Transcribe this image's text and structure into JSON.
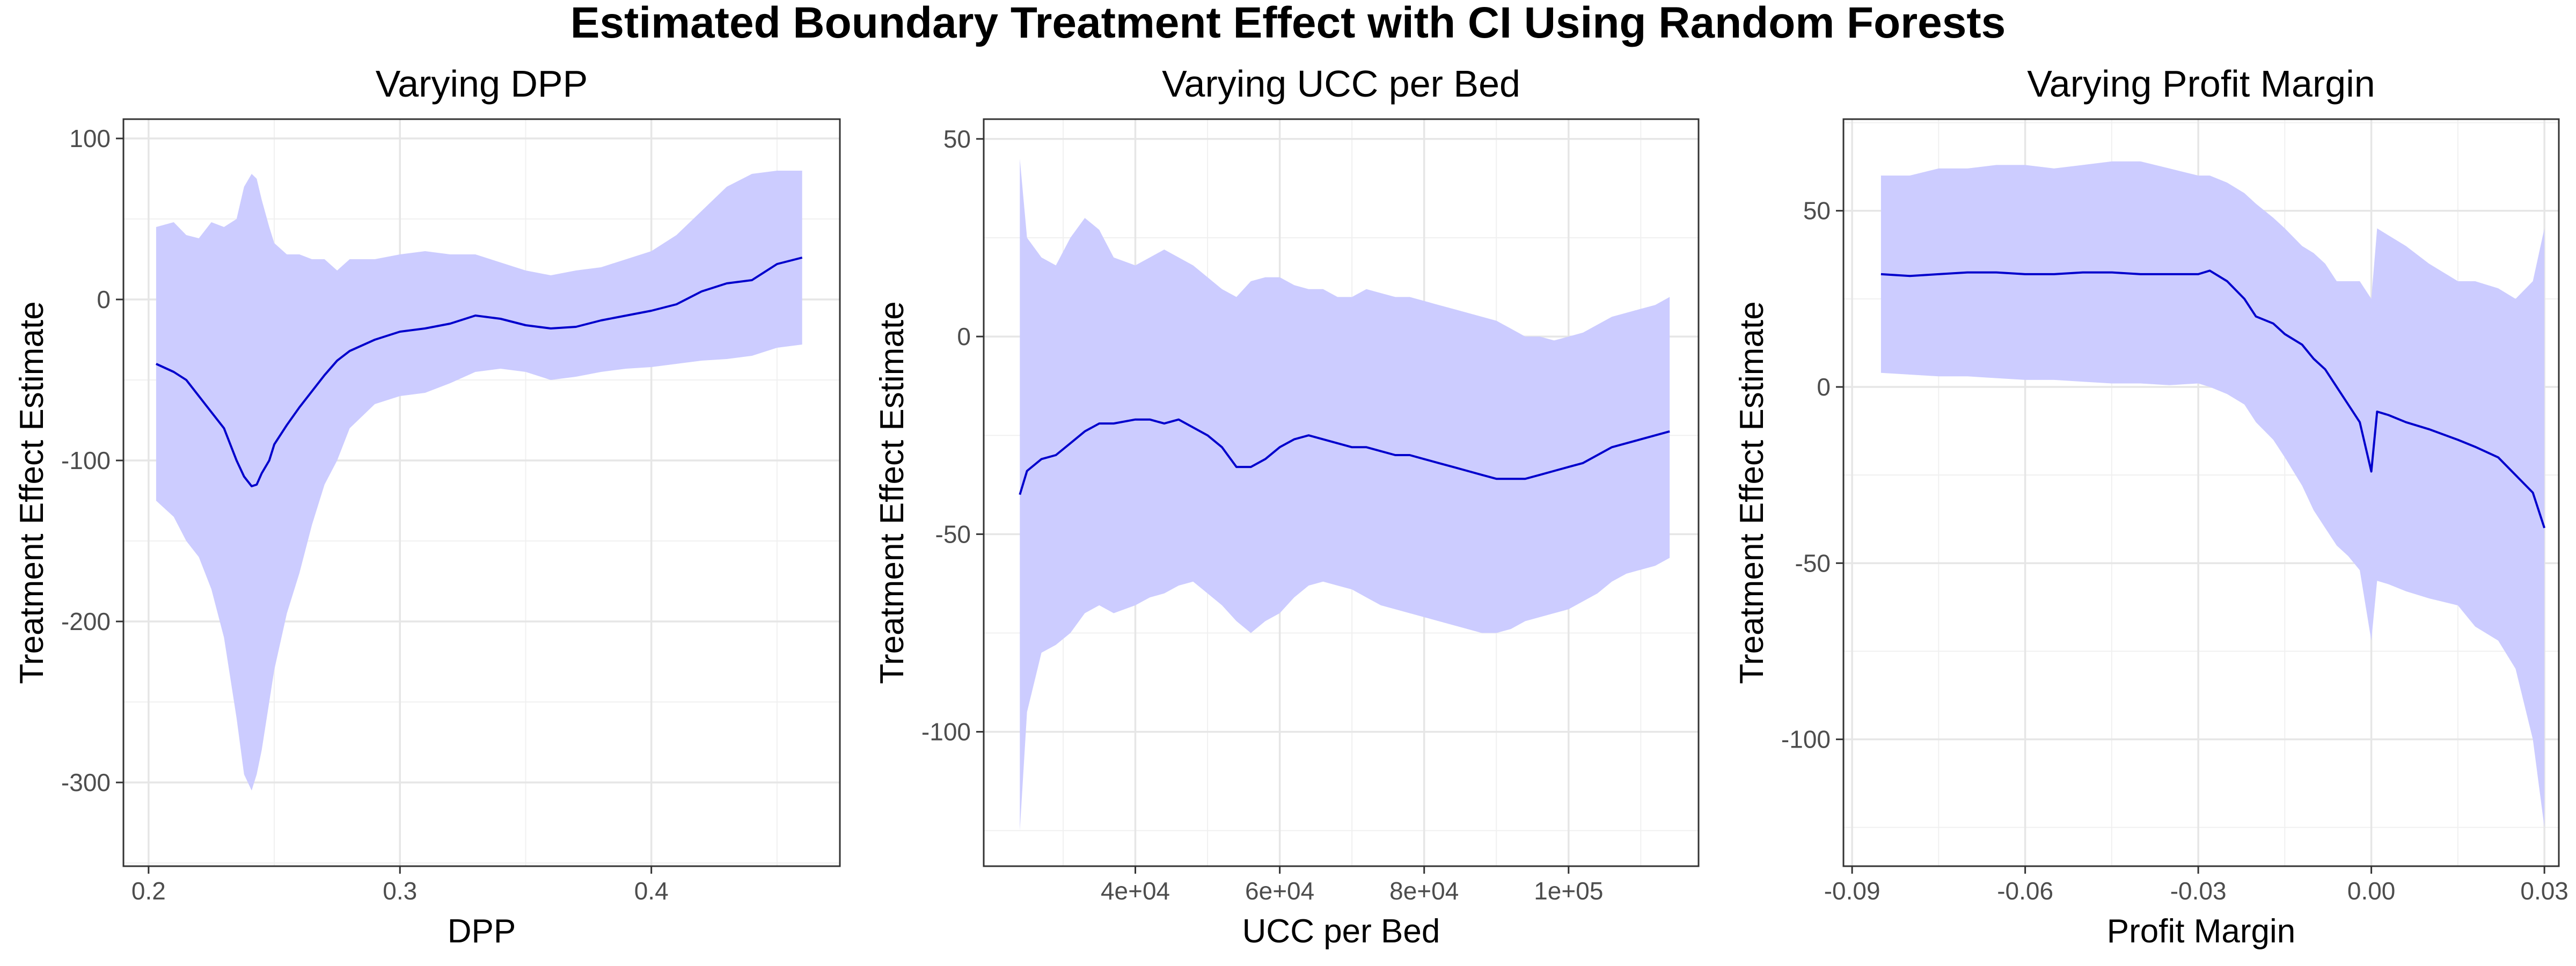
{
  "figure": {
    "title": "Estimated Boundary Treatment Effect with CI Using Random Forests"
  },
  "colors": {
    "ribbon": "#ccccff",
    "line": "#0000cc",
    "grid": "#ebebeb",
    "frame": "#333333"
  },
  "chart_data": [
    {
      "type": "line",
      "title": "Varying DPP",
      "xlabel": "DPP",
      "ylabel": "Treatment Effect Estimate",
      "xlim": [
        0.19,
        0.475
      ],
      "ylim": [
        -352,
        112
      ],
      "xticks": [
        0.2,
        0.3,
        0.4
      ],
      "xtick_labels": [
        "0.2",
        "0.3",
        "0.4"
      ],
      "yticks": [
        -300,
        -200,
        -100,
        0,
        100
      ],
      "ytick_labels": [
        "-300",
        "-200",
        "-100",
        "0",
        "100"
      ],
      "grid": true,
      "series": [
        {
          "x": [
            0.203,
            0.21,
            0.215,
            0.22,
            0.225,
            0.23,
            0.235,
            0.238,
            0.241,
            0.243,
            0.245,
            0.248,
            0.25,
            0.255,
            0.26,
            0.265,
            0.27,
            0.275,
            0.28,
            0.29,
            0.3,
            0.31,
            0.32,
            0.33,
            0.34,
            0.35,
            0.36,
            0.37,
            0.38,
            0.39,
            0.4,
            0.41,
            0.42,
            0.43,
            0.44,
            0.45,
            0.46
          ],
          "y": [
            -40,
            -45,
            -50,
            -60,
            -70,
            -80,
            -100,
            -110,
            -116,
            -115,
            -108,
            -100,
            -90,
            -78,
            -67,
            -57,
            -47,
            -38,
            -32,
            -25,
            -20,
            -18,
            -15,
            -10,
            -12,
            -16,
            -18,
            -17,
            -13,
            -10,
            -7,
            -3,
            5,
            10,
            12,
            22,
            26
          ],
          "lower": [
            -125,
            -135,
            -150,
            -160,
            -180,
            -210,
            -260,
            -295,
            -305,
            -295,
            -280,
            -250,
            -230,
            -195,
            -170,
            -140,
            -115,
            -100,
            -80,
            -65,
            -60,
            -58,
            -52,
            -45,
            -43,
            -45,
            -50,
            -48,
            -45,
            -43,
            -42,
            -40,
            -38,
            -37,
            -35,
            -30,
            -28
          ],
          "upper": [
            45,
            48,
            40,
            38,
            48,
            45,
            50,
            70,
            78,
            75,
            62,
            45,
            35,
            28,
            28,
            25,
            25,
            18,
            25,
            25,
            28,
            30,
            28,
            28,
            23,
            18,
            15,
            18,
            20,
            25,
            30,
            40,
            55,
            70,
            78,
            80,
            80
          ]
        }
      ]
    },
    {
      "type": "line",
      "title": "Varying UCC per Bed",
      "xlabel": "UCC per Bed",
      "ylabel": "Treatment Effect Estimate",
      "xlim": [
        19000,
        118000
      ],
      "ylim": [
        -134,
        55
      ],
      "xticks": [
        40000,
        60000,
        80000,
        100000
      ],
      "xtick_labels": [
        "4e+04",
        "6e+04",
        "8e+04",
        "1e+05"
      ],
      "yticks": [
        -100,
        -50,
        0,
        50
      ],
      "ytick_labels": [
        "-100",
        "-50",
        "0",
        "50"
      ],
      "grid": true,
      "series": [
        {
          "x": [
            24000,
            25000,
            27000,
            29000,
            31000,
            33000,
            35000,
            37000,
            40000,
            42000,
            44000,
            46000,
            48000,
            50000,
            52000,
            54000,
            56000,
            58000,
            60000,
            62000,
            64000,
            66000,
            68000,
            70000,
            72000,
            74000,
            76000,
            78000,
            80000,
            82000,
            84000,
            86000,
            88000,
            90000,
            92000,
            94000,
            96000,
            98000,
            100000,
            102000,
            104000,
            106000,
            108000,
            110000,
            112000,
            114000
          ],
          "y": [
            -40,
            -34,
            -31,
            -30,
            -27,
            -24,
            -22,
            -22,
            -21,
            -21,
            -22,
            -21,
            -23,
            -25,
            -28,
            -33,
            -33,
            -31,
            -28,
            -26,
            -25,
            -26,
            -27,
            -28,
            -28,
            -29,
            -30,
            -30,
            -31,
            -32,
            -33,
            -34,
            -35,
            -36,
            -36,
            -36,
            -35,
            -34,
            -33,
            -32,
            -30,
            -28,
            -27,
            -26,
            -25,
            -24
          ],
          "lower": [
            -125,
            -95,
            -80,
            -78,
            -75,
            -70,
            -68,
            -70,
            -68,
            -66,
            -65,
            -63,
            -62,
            -65,
            -68,
            -72,
            -75,
            -72,
            -70,
            -66,
            -63,
            -62,
            -63,
            -64,
            -66,
            -68,
            -69,
            -70,
            -71,
            -72,
            -73,
            -74,
            -75,
            -75,
            -74,
            -72,
            -71,
            -70,
            -69,
            -67,
            -65,
            -62,
            -60,
            -59,
            -58,
            -56
          ],
          "upper": [
            45,
            25,
            20,
            18,
            25,
            30,
            27,
            20,
            18,
            20,
            22,
            20,
            18,
            15,
            12,
            10,
            14,
            15,
            15,
            13,
            12,
            12,
            10,
            10,
            12,
            11,
            10,
            10,
            9,
            8,
            7,
            6,
            5,
            4,
            2,
            0,
            0,
            -1,
            0,
            1,
            3,
            5,
            6,
            7,
            8,
            10
          ]
        }
      ]
    },
    {
      "type": "line",
      "title": "Varying Profit Margin",
      "xlabel": "Profit Margin",
      "ylabel": "Treatment Effect Estimate",
      "xlim": [
        -0.0915,
        0.0325
      ],
      "ylim": [
        -136,
        76
      ],
      "xticks": [
        -0.09,
        -0.06,
        -0.03,
        0.0,
        0.03
      ],
      "xtick_labels": [
        "-0.09",
        "-0.06",
        "-0.03",
        "0.00",
        "0.03"
      ],
      "yticks": [
        -100,
        -50,
        0,
        50
      ],
      "ytick_labels": [
        "-100",
        "-50",
        "0",
        "50"
      ],
      "grid": true,
      "series": [
        {
          "x": [
            -0.085,
            -0.08,
            -0.075,
            -0.07,
            -0.065,
            -0.06,
            -0.055,
            -0.05,
            -0.045,
            -0.04,
            -0.035,
            -0.03,
            -0.028,
            -0.025,
            -0.022,
            -0.02,
            -0.017,
            -0.015,
            -0.012,
            -0.01,
            -0.008,
            -0.006,
            -0.004,
            -0.002,
            0.0,
            0.001,
            0.003,
            0.006,
            0.01,
            0.015,
            0.018,
            0.022,
            0.025,
            0.028,
            0.03
          ],
          "y": [
            32,
            31.5,
            32,
            32.5,
            32.5,
            32,
            32,
            32.5,
            32.5,
            32,
            32,
            32,
            33,
            30,
            25,
            20,
            18,
            15,
            12,
            8,
            5,
            0,
            -5,
            -10,
            -24,
            -7,
            -8,
            -10,
            -12,
            -15,
            -17,
            -20,
            -25,
            -30,
            -40
          ],
          "lower": [
            4,
            3.5,
            3,
            3,
            2.5,
            2,
            2,
            1.5,
            1,
            1,
            0.5,
            1,
            0,
            -2,
            -5,
            -10,
            -15,
            -20,
            -28,
            -35,
            -40,
            -45,
            -48,
            -52,
            -72,
            -55,
            -56,
            -58,
            -60,
            -62,
            -68,
            -72,
            -80,
            -100,
            -125
          ],
          "upper": [
            60,
            60,
            62,
            62,
            63,
            63,
            62,
            63,
            64,
            64,
            62,
            60,
            60,
            58,
            55,
            52,
            48,
            45,
            40,
            38,
            35,
            30,
            30,
            30,
            25,
            45,
            43,
            40,
            35,
            30,
            30,
            28,
            25,
            30,
            45
          ]
        }
      ]
    }
  ]
}
